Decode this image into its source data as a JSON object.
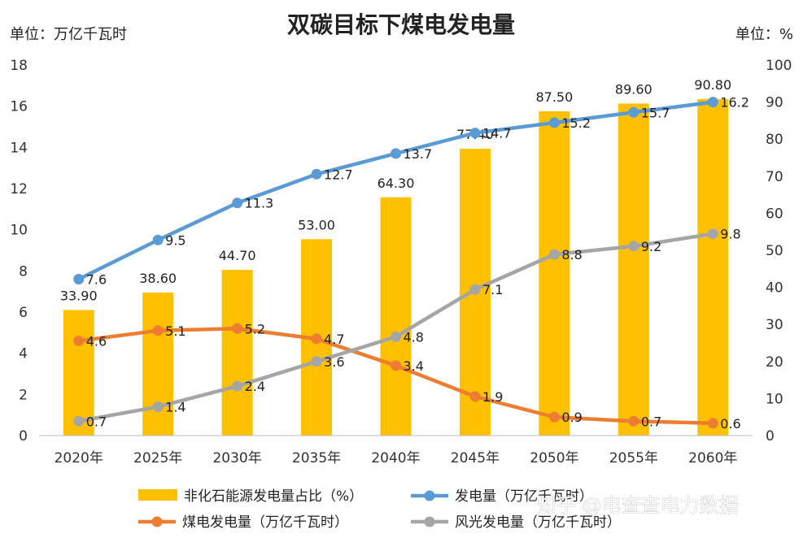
{
  "chart_data": {
    "type": "bar",
    "title": "双碳目标下煤电发电量",
    "left_unit": "单位：万亿千瓦时",
    "right_unit": "单位：%",
    "categories": [
      "2020年",
      "2025年",
      "2030年",
      "2035年",
      "2040年",
      "2045年",
      "2050年",
      "2055年",
      "2060年"
    ],
    "y_left": {
      "min": 0,
      "max": 18,
      "ticks": [
        "0",
        "2",
        "4",
        "6",
        "8",
        "10",
        "12",
        "14",
        "16",
        "18"
      ]
    },
    "y_right": {
      "min": 0,
      "max": 100,
      "ticks": [
        "0",
        "10",
        "20",
        "30",
        "40",
        "50",
        "60",
        "70",
        "80",
        "90",
        "100"
      ]
    },
    "grid": false,
    "legend_position": "bottom",
    "bar_series": {
      "name": "非化石能源发电量占比（%）",
      "axis": "right",
      "color": "#FFC000",
      "values": [
        33.9,
        38.6,
        44.7,
        53.0,
        64.3,
        77.4,
        87.5,
        89.6,
        90.8
      ],
      "labels": [
        "33.90",
        "38.60",
        "44.70",
        "53.00",
        "64.30",
        "77.40",
        "87.50",
        "89.60",
        "90.80"
      ]
    },
    "line_series": [
      {
        "name": "发电量（万亿千瓦时）",
        "axis": "left",
        "color": "#5B9BD5",
        "values": [
          7.6,
          9.5,
          11.3,
          12.7,
          13.7,
          14.7,
          15.2,
          15.7,
          16.2
        ],
        "labels": [
          "7.6",
          "9.5",
          "11.3",
          "12.7",
          "13.7",
          "14.7",
          "15.2",
          "15.7",
          "16.2"
        ]
      },
      {
        "name": "煤电发电量（万亿千瓦时）",
        "axis": "left",
        "color": "#ED7D31",
        "values": [
          4.6,
          5.1,
          5.2,
          4.7,
          3.4,
          1.9,
          0.9,
          0.7,
          0.6
        ],
        "labels": [
          "4.6",
          "5.1",
          "5.2",
          "4.7",
          "3.4",
          "1.9",
          "0.9",
          "0.7",
          "0.6"
        ]
      },
      {
        "name": "风光发电量（万亿千瓦时）",
        "axis": "left",
        "color": "#A5A5A5",
        "values": [
          0.7,
          1.4,
          2.4,
          3.6,
          4.8,
          7.1,
          8.8,
          9.2,
          9.8
        ],
        "labels": [
          "0.7",
          "1.4",
          "2.4",
          "3.6",
          "4.8",
          "7.1",
          "8.8",
          "9.2",
          "9.8"
        ]
      }
    ]
  },
  "watermark": "知乎 @电查查电力数据"
}
